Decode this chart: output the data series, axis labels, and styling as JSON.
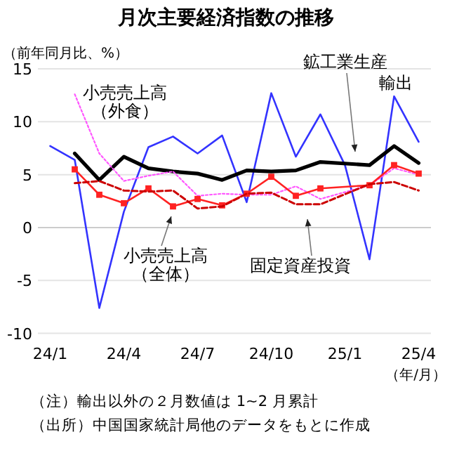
{
  "chart_data": {
    "type": "line",
    "title": "月次主要経済指数の推移",
    "ylabel": "（前年同月比、%）",
    "xlabel": "（年/月）",
    "categories": [
      "24/1",
      null,
      null,
      "24/4",
      null,
      null,
      "24/7",
      null,
      null,
      "24/10",
      null,
      null,
      "25/1",
      null,
      null,
      "25/4"
    ],
    "ylim": [
      -10,
      15
    ],
    "yticks": [
      -10,
      -5,
      0,
      5,
      10,
      15
    ],
    "grid": "y",
    "legend": false,
    "marker": "none",
    "series": [
      {
        "name": "輸出",
        "color": "#3333ff",
        "line_style": "solid",
        "values": [
          7.7,
          6.4,
          -7.6,
          1.5,
          7.6,
          8.6,
          7.0,
          8.7,
          2.4,
          12.7,
          6.7,
          10.7,
          5.9,
          -3.0,
          12.4,
          8.1
        ]
      },
      {
        "name": "鉱工業生産",
        "color": "#000000",
        "line_style": "solid",
        "values": [
          null,
          7.0,
          4.5,
          6.7,
          5.6,
          5.3,
          5.1,
          4.5,
          5.4,
          5.3,
          5.4,
          6.2,
          null,
          5.9,
          7.7,
          6.1
        ]
      },
      {
        "name": "小売売上高（外食）",
        "color": "#ff55ff",
        "line_style": "dotted",
        "values": [
          null,
          12.6,
          7.0,
          4.4,
          4.9,
          5.3,
          3.0,
          3.2,
          3.1,
          3.1,
          3.9,
          2.7,
          null,
          4.0,
          5.6,
          5.0
        ]
      },
      {
        "name": "小売売上高（全体）",
        "color": "#ff2222",
        "line_style": "solid",
        "marker": "square",
        "values": [
          null,
          5.5,
          3.1,
          2.3,
          3.7,
          2.0,
          2.7,
          2.1,
          3.2,
          4.8,
          3.0,
          3.7,
          null,
          4.0,
          5.9,
          5.1
        ]
      },
      {
        "name": "固定資産投資",
        "color": "#cc0000",
        "line_style": "dashed",
        "values": [
          null,
          4.2,
          4.4,
          3.5,
          3.4,
          3.5,
          1.8,
          2.0,
          3.2,
          3.3,
          2.2,
          2.2,
          null,
          4.1,
          4.3,
          3.5
        ]
      }
    ],
    "annotations": [
      "（注）輸出以外の２月数値は 1~2 月累計",
      "（出所）中国国家統計局他のデータをもとに作成"
    ]
  }
}
